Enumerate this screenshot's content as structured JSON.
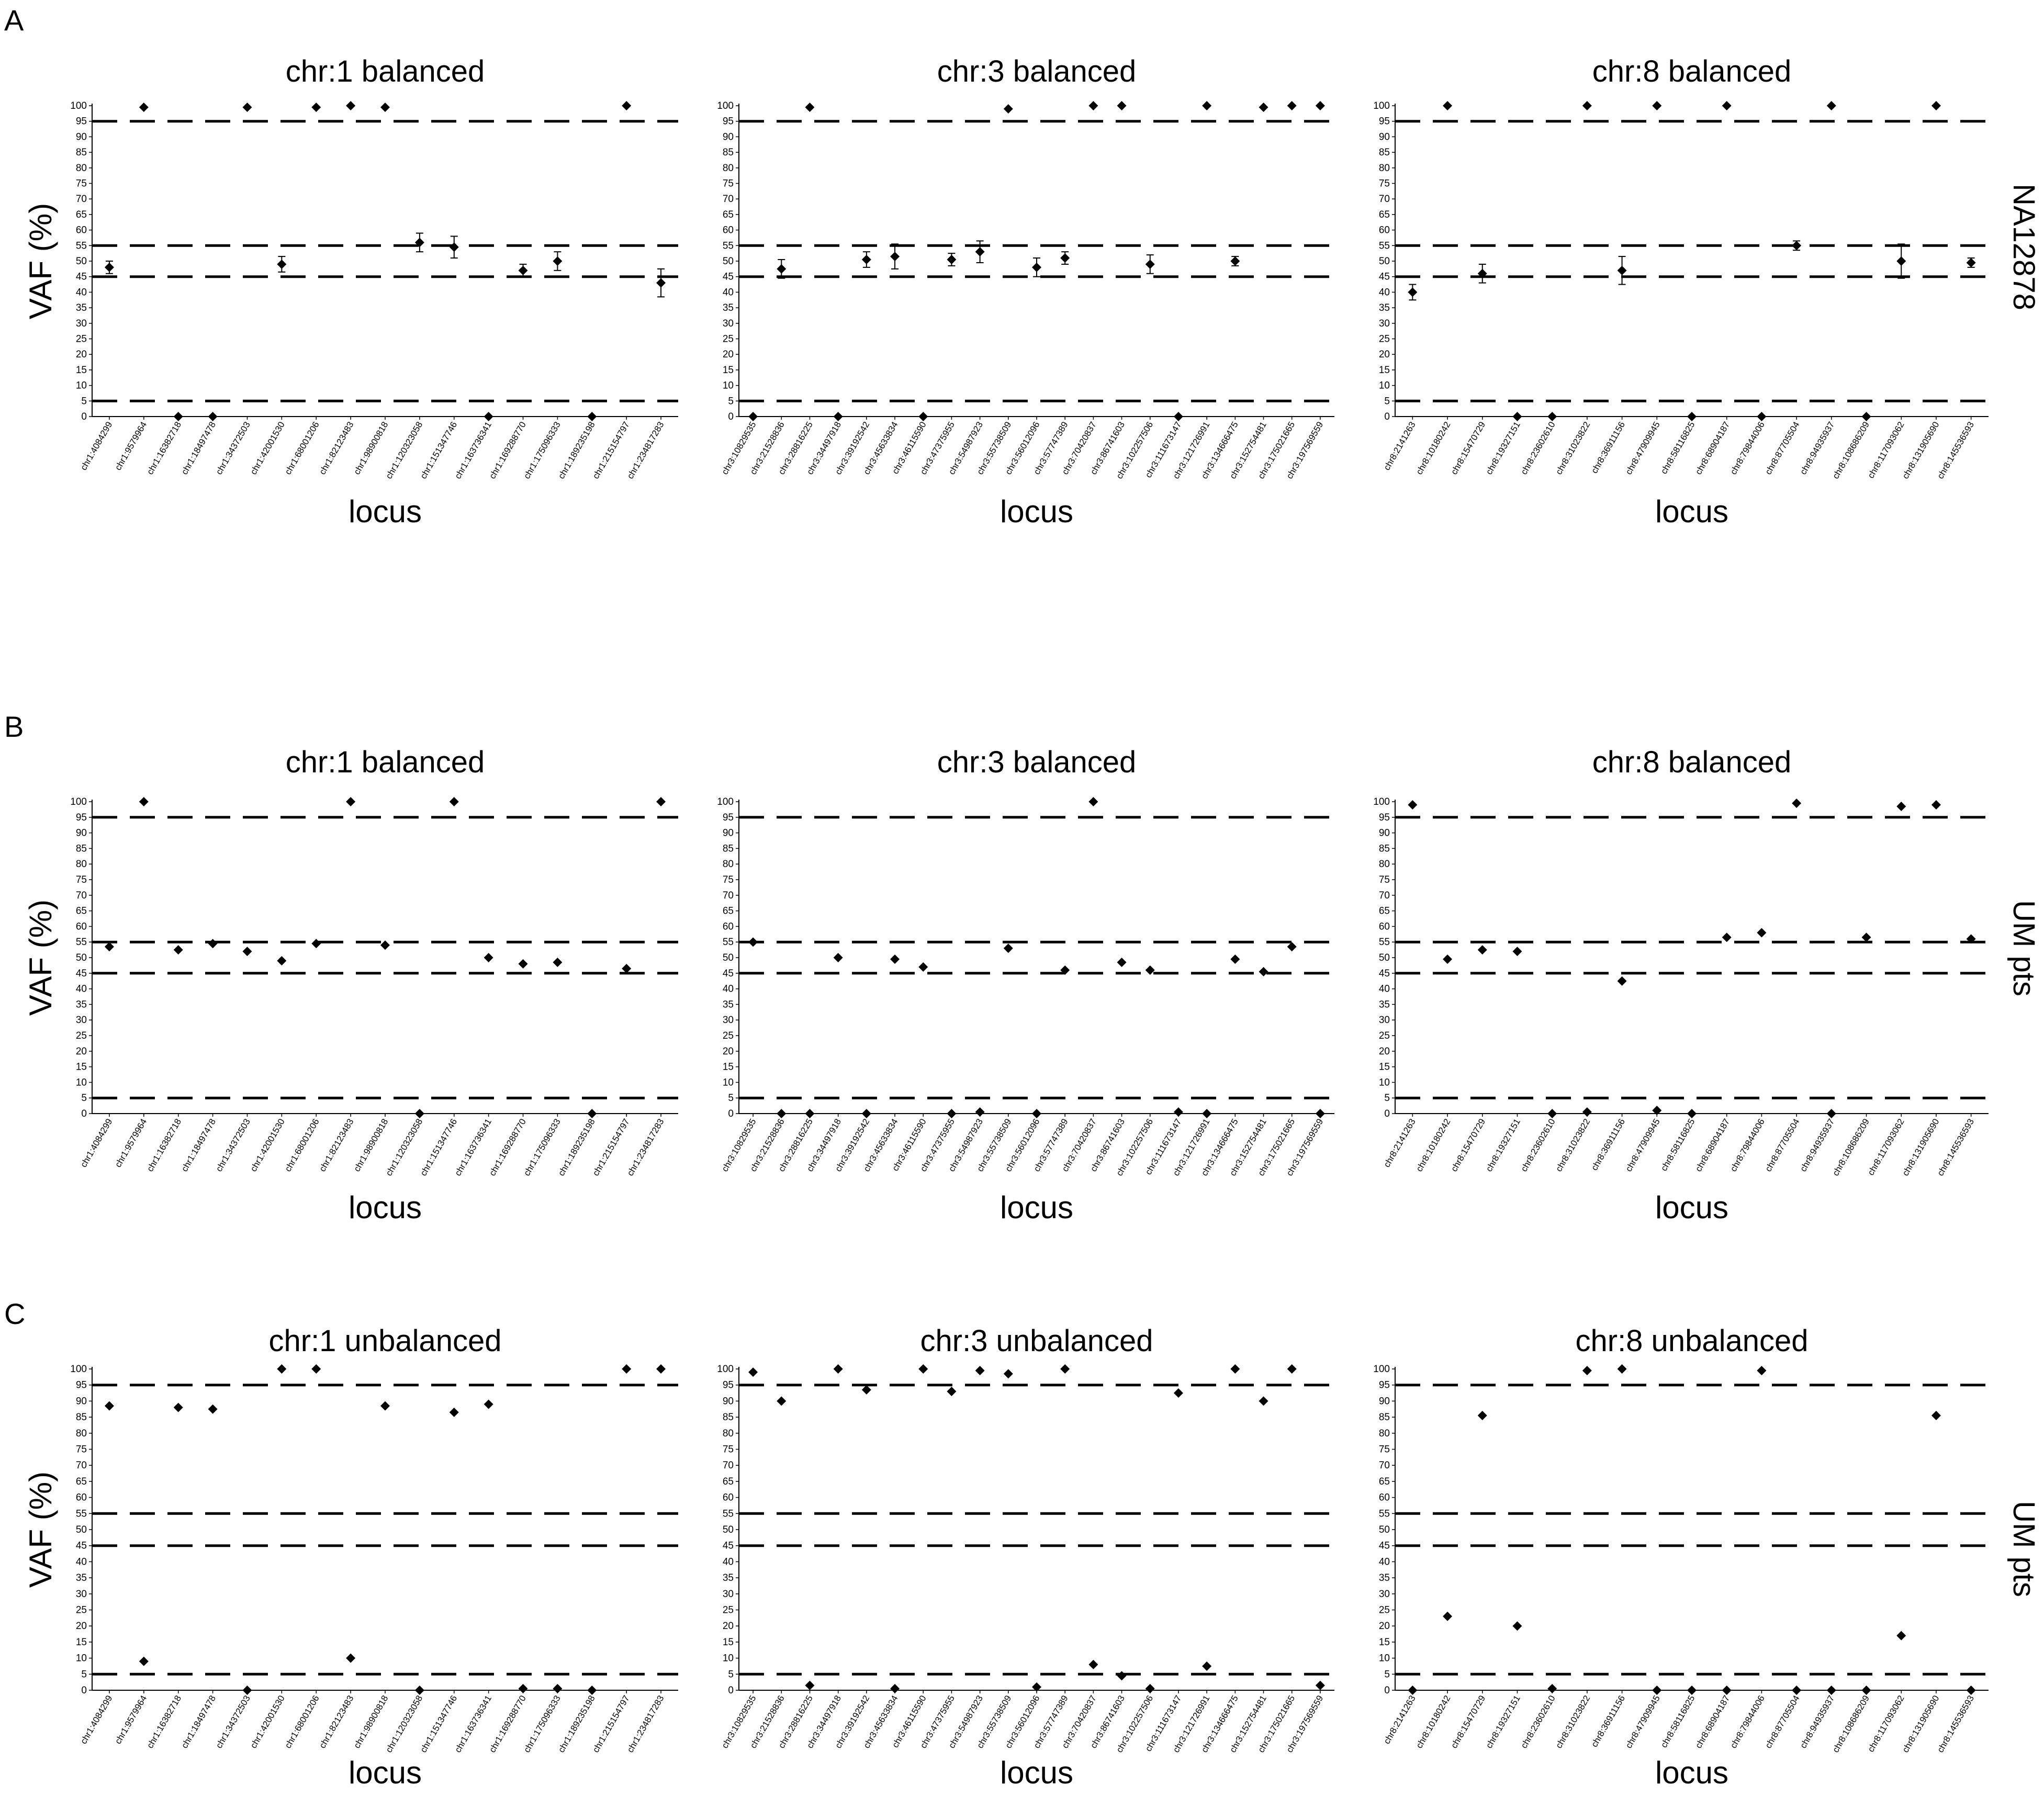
{
  "figure": {
    "panel_labels": [
      "A",
      "B",
      "C"
    ],
    "row_labels": [
      "NA12878",
      "UM pts",
      "UM pts"
    ]
  },
  "chart_data": [
    {
      "type": "scatter",
      "row": 0,
      "col": 0,
      "title": "chr:1 balanced",
      "xlabel": "locus",
      "ylabel": "VAF (%)",
      "ylim": [
        0,
        100
      ],
      "yticks": [
        0,
        5,
        10,
        15,
        20,
        25,
        30,
        35,
        40,
        45,
        50,
        55,
        60,
        65,
        70,
        75,
        80,
        85,
        90,
        95,
        100
      ],
      "reference_lines": [
        5,
        45,
        55,
        95
      ],
      "categories": [
        "chr1:4084299",
        "chr1:9579964",
        "chr1:16382718",
        "chr1:18497478",
        "chr1:34372503",
        "chr1:42001530",
        "chr1:68001206",
        "chr1:82123483",
        "chr1:98900818",
        "chr1:120323058",
        "chr1:151347746",
        "chr1:163736341",
        "chr1:169288770",
        "chr1:175096333",
        "chr1:189235198",
        "chr1:215154797",
        "chr1:234817283"
      ],
      "values": [
        48,
        99.5,
        0,
        0,
        99.5,
        49,
        99.5,
        100,
        99.5,
        56,
        54.5,
        0,
        47,
        50,
        0,
        100,
        43
      ],
      "error": [
        2,
        0,
        0,
        0,
        0,
        2.5,
        0,
        0,
        0,
        3,
        3.5,
        0,
        2,
        3,
        0,
        0,
        4.5
      ]
    },
    {
      "type": "scatter",
      "row": 0,
      "col": 1,
      "title": "chr:3 balanced",
      "xlabel": "locus",
      "ylabel": "",
      "ylim": [
        0,
        100
      ],
      "yticks": [
        0,
        5,
        10,
        15,
        20,
        25,
        30,
        35,
        40,
        45,
        50,
        55,
        60,
        65,
        70,
        75,
        80,
        85,
        90,
        95,
        100
      ],
      "reference_lines": [
        5,
        45,
        55,
        95
      ],
      "categories": [
        "chr3:10829535",
        "chr3:21528836",
        "chr3:28816225",
        "chr3:34497918",
        "chr3:39192542",
        "chr3:45633834",
        "chr3:46115590",
        "chr3:47375955",
        "chr3:54987923",
        "chr3:55738509",
        "chr3:56012096",
        "chr3:57747389",
        "chr3:70420837",
        "chr3:86741603",
        "chr3:102257506",
        "chr3:111673147",
        "chr3:121726991",
        "chr3:134666475",
        "chr3:152754481",
        "chr3:175021665",
        "chr3:197569559"
      ],
      "values": [
        0,
        47.5,
        99.5,
        0,
        50.5,
        51.5,
        0,
        50.5,
        53,
        99,
        48,
        51,
        100,
        100,
        49,
        0,
        100,
        50,
        99.5,
        100,
        100
      ],
      "error": [
        0,
        3,
        0,
        0,
        2.5,
        4,
        0,
        2,
        3.5,
        0,
        3,
        2,
        0,
        0,
        3,
        0,
        0,
        1.5,
        0,
        0,
        0
      ]
    },
    {
      "type": "scatter",
      "row": 0,
      "col": 2,
      "title": "chr:8 balanced",
      "xlabel": "locus",
      "ylabel": "",
      "ylim": [
        0,
        100
      ],
      "yticks": [
        0,
        5,
        10,
        15,
        20,
        25,
        30,
        35,
        40,
        45,
        50,
        55,
        60,
        65,
        70,
        75,
        80,
        85,
        90,
        95,
        100
      ],
      "reference_lines": [
        5,
        45,
        55,
        95
      ],
      "categories": [
        "chr8:2141263",
        "chr8:10180242",
        "chr8:15470729",
        "chr8:19327151",
        "chr8:23602610",
        "chr8:31023822",
        "chr8:36911156",
        "chr8:47909945",
        "chr8:58116825",
        "chr8:68904187",
        "chr8:79844006",
        "chr8:87705504",
        "chr8:94935937",
        "chr8:108686209",
        "chr8:117093062",
        "chr8:131905690",
        "chr8:145536593"
      ],
      "values": [
        40,
        100,
        46,
        0,
        0,
        100,
        47,
        100,
        0,
        100,
        0,
        55,
        100,
        0,
        50,
        100,
        49.5
      ],
      "error": [
        2.5,
        0,
        3,
        0,
        0,
        0,
        4.5,
        0,
        0,
        0,
        0,
        1.5,
        0,
        0,
        5.5,
        0,
        1.5
      ]
    },
    {
      "type": "scatter",
      "row": 1,
      "col": 0,
      "title": "chr:1 balanced",
      "xlabel": "locus",
      "ylabel": "VAF (%)",
      "ylim": [
        0,
        100
      ],
      "yticks": [
        0,
        5,
        10,
        15,
        20,
        25,
        30,
        35,
        40,
        45,
        50,
        55,
        60,
        65,
        70,
        75,
        80,
        85,
        90,
        95,
        100
      ],
      "reference_lines": [
        5,
        45,
        55,
        95
      ],
      "categories": [
        "chr1:4084299",
        "chr1:9579964",
        "chr1:16382718",
        "chr1:18497478",
        "chr1:34372503",
        "chr1:42001530",
        "chr1:68001206",
        "chr1:82123483",
        "chr1:98900818",
        "chr1:120323058",
        "chr1:151347746",
        "chr1:163736341",
        "chr1:169288770",
        "chr1:175096333",
        "chr1:189235198",
        "chr1:215154797",
        "chr1:234817283"
      ],
      "values": [
        53.5,
        100,
        52.5,
        54.5,
        52,
        49,
        54.5,
        100,
        54,
        0,
        100,
        50,
        48,
        48.5,
        0,
        46.5,
        100
      ]
    },
    {
      "type": "scatter",
      "row": 1,
      "col": 1,
      "title": "chr:3 balanced",
      "xlabel": "locus",
      "ylabel": "",
      "ylim": [
        0,
        100
      ],
      "yticks": [
        0,
        5,
        10,
        15,
        20,
        25,
        30,
        35,
        40,
        45,
        50,
        55,
        60,
        65,
        70,
        75,
        80,
        85,
        90,
        95,
        100
      ],
      "reference_lines": [
        5,
        45,
        55,
        95
      ],
      "categories": [
        "chr3:10829535",
        "chr3:21528836",
        "chr3:28816225",
        "chr3:34497918",
        "chr3:39192542",
        "chr3:45633834",
        "chr3:46115590",
        "chr3:47375955",
        "chr3:54987923",
        "chr3:55738509",
        "chr3:56012096",
        "chr3:57747389",
        "chr3:70420837",
        "chr3:86741603",
        "chr3:102257506",
        "chr3:111673147",
        "chr3:121726991",
        "chr3:134666475",
        "chr3:152754481",
        "chr3:175021665",
        "chr3:197569559"
      ],
      "values": [
        55,
        0,
        0,
        50,
        0,
        49.5,
        47,
        0,
        0.5,
        53,
        0,
        46,
        100,
        48.5,
        46,
        0.5,
        0,
        49.5,
        45.5,
        53.5,
        0
      ]
    },
    {
      "type": "scatter",
      "row": 1,
      "col": 2,
      "title": "chr:8 balanced",
      "xlabel": "locus",
      "ylabel": "",
      "ylim": [
        0,
        100
      ],
      "yticks": [
        0,
        5,
        10,
        15,
        20,
        25,
        30,
        35,
        40,
        45,
        50,
        55,
        60,
        65,
        70,
        75,
        80,
        85,
        90,
        95,
        100
      ],
      "reference_lines": [
        5,
        45,
        55,
        95
      ],
      "categories": [
        "chr8:2141263",
        "chr8:10180242",
        "chr8:15470729",
        "chr8:19327151",
        "chr8:23602610",
        "chr8:31023822",
        "chr8:36911156",
        "chr8:47909945",
        "chr8:58116825",
        "chr8:68904187",
        "chr8:79844006",
        "chr8:87705504",
        "chr8:94935937",
        "chr8:108686209",
        "chr8:117093062",
        "chr8:131905690",
        "chr8:145536593"
      ],
      "values": [
        99,
        49.5,
        52.5,
        52,
        0,
        0.5,
        42.5,
        1,
        0,
        56.5,
        58,
        99.5,
        0,
        56.5,
        98.5,
        99,
        56
      ]
    },
    {
      "type": "scatter",
      "row": 2,
      "col": 0,
      "title": "chr:1 unbalanced",
      "xlabel": "locus",
      "ylabel": "VAF (%)",
      "ylim": [
        0,
        100
      ],
      "yticks": [
        0,
        5,
        10,
        15,
        20,
        25,
        30,
        35,
        40,
        45,
        50,
        55,
        60,
        65,
        70,
        75,
        80,
        85,
        90,
        95,
        100
      ],
      "reference_lines": [
        5,
        45,
        55,
        95
      ],
      "categories": [
        "chr1:4084299",
        "chr1:9579964",
        "chr1:16382718",
        "chr1:18497478",
        "chr1:34372503",
        "chr1:42001530",
        "chr1:68001206",
        "chr1:82123483",
        "chr1:98900818",
        "chr1:120323058",
        "chr1:151347746",
        "chr1:163736341",
        "chr1:169288770",
        "chr1:175096333",
        "chr1:189235198",
        "chr1:215154797",
        "chr1:234817283"
      ],
      "values": [
        88.5,
        9,
        88,
        87.5,
        0,
        100,
        100,
        10,
        88.5,
        0,
        86.5,
        89,
        0.5,
        0.5,
        0,
        100,
        100
      ]
    },
    {
      "type": "scatter",
      "row": 2,
      "col": 1,
      "title": "chr:3 unbalanced",
      "xlabel": "locus",
      "ylabel": "",
      "ylim": [
        0,
        100
      ],
      "yticks": [
        0,
        5,
        10,
        15,
        20,
        25,
        30,
        35,
        40,
        45,
        50,
        55,
        60,
        65,
        70,
        75,
        80,
        85,
        90,
        95,
        100
      ],
      "reference_lines": [
        5,
        45,
        55,
        95
      ],
      "categories": [
        "chr3:10829535",
        "chr3:21528836",
        "chr3:28816225",
        "chr3:34497918",
        "chr3:39192542",
        "chr3:45633834",
        "chr3:46115590",
        "chr3:47375955",
        "chr3:54987923",
        "chr3:55738509",
        "chr3:56012096",
        "chr3:57747389",
        "chr3:70420837",
        "chr3:86741603",
        "chr3:102257506",
        "chr3:111673147",
        "chr3:121726991",
        "chr3:134666475",
        "chr3:152754481",
        "chr3:175021665",
        "chr3:197569559"
      ],
      "values": [
        99,
        90,
        1.5,
        100,
        93.5,
        0.5,
        100,
        93,
        99.5,
        98.5,
        1,
        100,
        8,
        4.5,
        0.5,
        92.5,
        7.5,
        100,
        90,
        100,
        1.5
      ]
    },
    {
      "type": "scatter",
      "row": 2,
      "col": 2,
      "title": "chr:8 unbalanced",
      "xlabel": "locus",
      "ylabel": "",
      "ylim": [
        0,
        100
      ],
      "yticks": [
        0,
        5,
        10,
        15,
        20,
        25,
        30,
        35,
        40,
        45,
        50,
        55,
        60,
        65,
        70,
        75,
        80,
        85,
        90,
        95,
        100
      ],
      "reference_lines": [
        5,
        45,
        55,
        95
      ],
      "categories": [
        "chr8:2141263",
        "chr8:10180242",
        "chr8:15470729",
        "chr8:19327151",
        "chr8:23602610",
        "chr8:31023822",
        "chr8:36911156",
        "chr8:47909945",
        "chr8:58116825",
        "chr8:68904187",
        "chr8:79844006",
        "chr8:87705504",
        "chr8:94935937",
        "chr8:108686209",
        "chr8:117093062",
        "chr8:131905690",
        "chr8:145536593"
      ],
      "values": [
        0,
        23,
        85.5,
        20,
        0.5,
        99.5,
        100,
        0,
        0,
        0,
        99.5,
        0,
        0,
        0,
        17,
        85.5,
        0
      ]
    }
  ]
}
